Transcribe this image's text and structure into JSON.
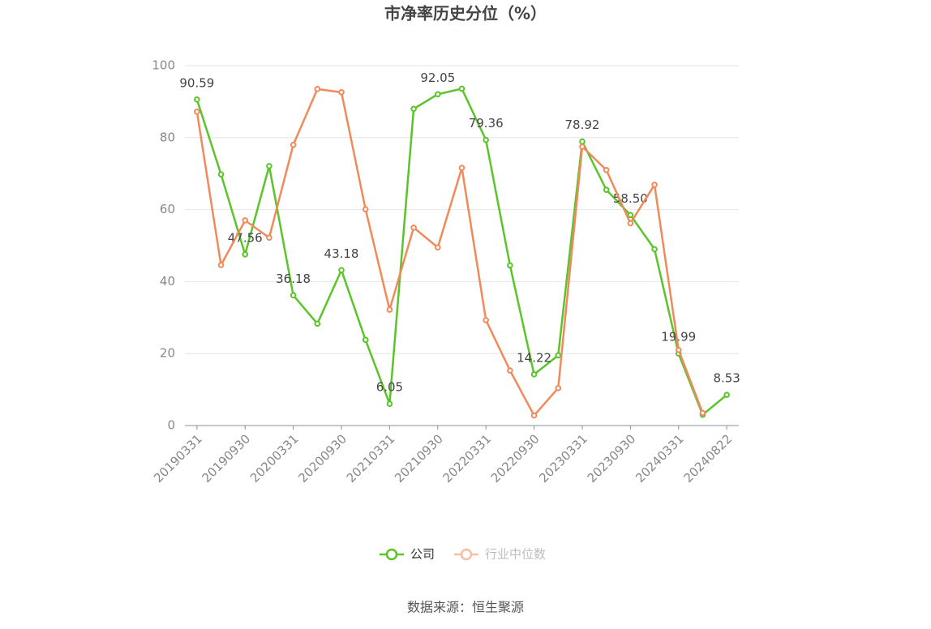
{
  "chart_data": {
    "type": "line",
    "title": "市净率历史分位（%）",
    "source": "数据来源：恒生聚源",
    "categories": [
      "20190331",
      null,
      "20190930",
      null,
      "20200331",
      null,
      "20200930",
      null,
      "20210331",
      null,
      "20210930",
      null,
      "20220331",
      null,
      "20220930",
      null,
      "20230331",
      null,
      "20230930",
      null,
      "20240331",
      null,
      "20240822"
    ],
    "series": [
      {
        "name": "公司",
        "color": "#5ac42a",
        "values": [
          90.59,
          69.8,
          47.56,
          72.1,
          36.18,
          28.3,
          43.18,
          23.8,
          6.05,
          88,
          92.05,
          93.6,
          79.36,
          44.5,
          14.22,
          19.5,
          78.92,
          65.5,
          58.5,
          49,
          19.99,
          3.0,
          8.53
        ],
        "value_labels": [
          "90.59",
          null,
          "47.56",
          null,
          "36.18",
          null,
          "43.18",
          null,
          "6.05",
          null,
          "92.05",
          null,
          "79.36",
          null,
          "14.22",
          null,
          "78.92",
          null,
          "58.50",
          null,
          "19.99",
          null,
          "8.53"
        ]
      },
      {
        "name": "行业中位数",
        "color": "#f08a5a",
        "values": [
          87.2,
          44.6,
          57,
          52.2,
          78,
          93.5,
          92.6,
          60.1,
          32.2,
          55,
          49.5,
          71.6,
          29.3,
          15.3,
          2.8,
          10.4,
          77.5,
          71,
          56.2,
          66.9,
          21,
          3.5,
          null
        ]
      }
    ],
    "ylim": [
      0,
      100
    ],
    "yticks": [
      0,
      20,
      40,
      60,
      80,
      100
    ],
    "grid": true,
    "legend": "bottom"
  }
}
